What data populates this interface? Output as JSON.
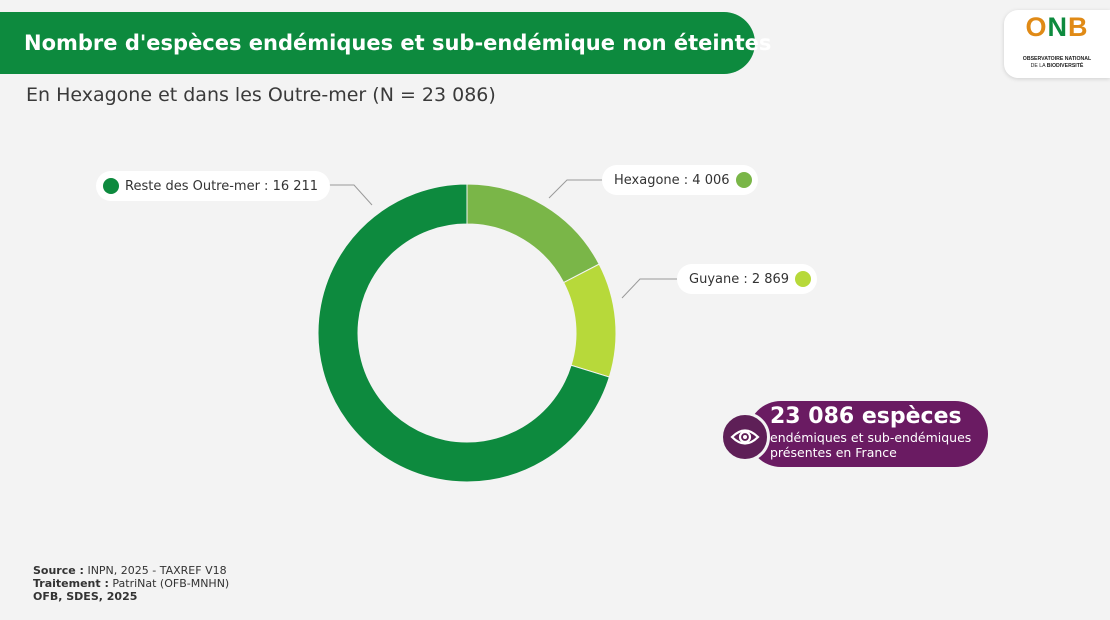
{
  "header": {
    "title": "Nombre d'espèces endémiques et sub-endémique non éteintes",
    "subtitle": "En Hexagone et dans les Outre-mer (N = 23 086)"
  },
  "logo": {
    "word_o": "O",
    "word_n": "N",
    "word_b": "B",
    "line1": "OBSERVATOIRE NATIONAL",
    "line2_prefix": "DE LA ",
    "line2_strong": "BIODIVERSITÉ"
  },
  "colors": {
    "banner": "#0d8a3e",
    "callout": "#6a1b62"
  },
  "chart_data": {
    "type": "pie",
    "style": "donut",
    "total": 23086,
    "slices": [
      {
        "name": "Hexagone",
        "value": 4006,
        "label": "Hexagone : 4 006",
        "color": "#7ab648"
      },
      {
        "name": "Guyane",
        "value": 2869,
        "label": "Guyane : 2 869",
        "color": "#b7d93a"
      },
      {
        "name": "Reste des Outre-mer",
        "value": 16211,
        "label": "Reste des Outre-mer : 16 211",
        "color": "#0d8a3e"
      }
    ]
  },
  "callout": {
    "icon": "eye-icon",
    "big": "23 086 espèces",
    "line1": "endémiques et sub-endémiques",
    "line2": "présentes en France"
  },
  "footer": {
    "source_label": "Source :",
    "source_text": " INPN, 2025 - TAXREF V18",
    "treatment_label": "Traitement :",
    "treatment_text": " PatriNat (OFB-MNHN)",
    "credit": "OFB, SDES, 2025"
  }
}
